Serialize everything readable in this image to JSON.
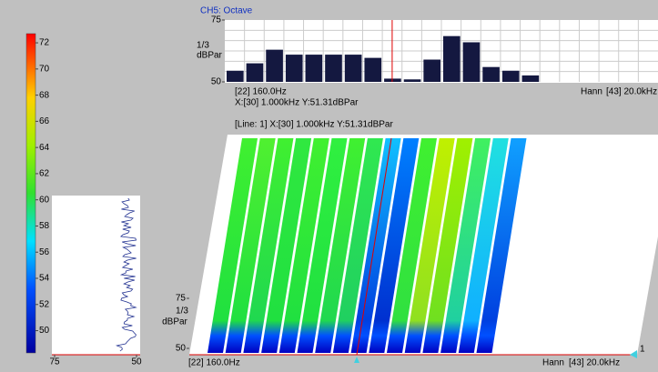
{
  "colorbar": {
    "lim": [
      48.3,
      72.7
    ],
    "ticks": [
      50,
      52,
      54,
      56,
      58,
      60,
      62,
      64,
      66,
      68,
      70,
      72
    ]
  },
  "side_panel": {
    "xticks": [
      75,
      50
    ]
  },
  "octave_panel": {
    "title": "CH5: Octave",
    "ylim": [
      50,
      75
    ],
    "yticks": [
      50,
      75
    ],
    "y_unit": [
      "1/3",
      "dBPar"
    ],
    "values": [
      54.5,
      57.5,
      63,
      61,
      61,
      61,
      61,
      59.7,
      51.31,
      51,
      59,
      68.5,
      66,
      56,
      54.5,
      52.6,
      null,
      null,
      null,
      null,
      null,
      null
    ],
    "start_label": "[22] 160.0Hz",
    "cursor": "X:[30] 1.000kHz Y:51.31dBPar",
    "window": "Hann",
    "end_label": "[43] 20.0kHz"
  },
  "waterfall_panel": {
    "header": "[Line: 1]  X:[30] 1.000kHz Y:51.31dBPar",
    "yticks": [
      50,
      75
    ],
    "y_unit": [
      "1/3",
      "dBPar"
    ],
    "start_label": "[22] 160.0Hz",
    "window": "Hann",
    "end_label": "[43] 20.0kHz",
    "line_count": 1
  }
}
